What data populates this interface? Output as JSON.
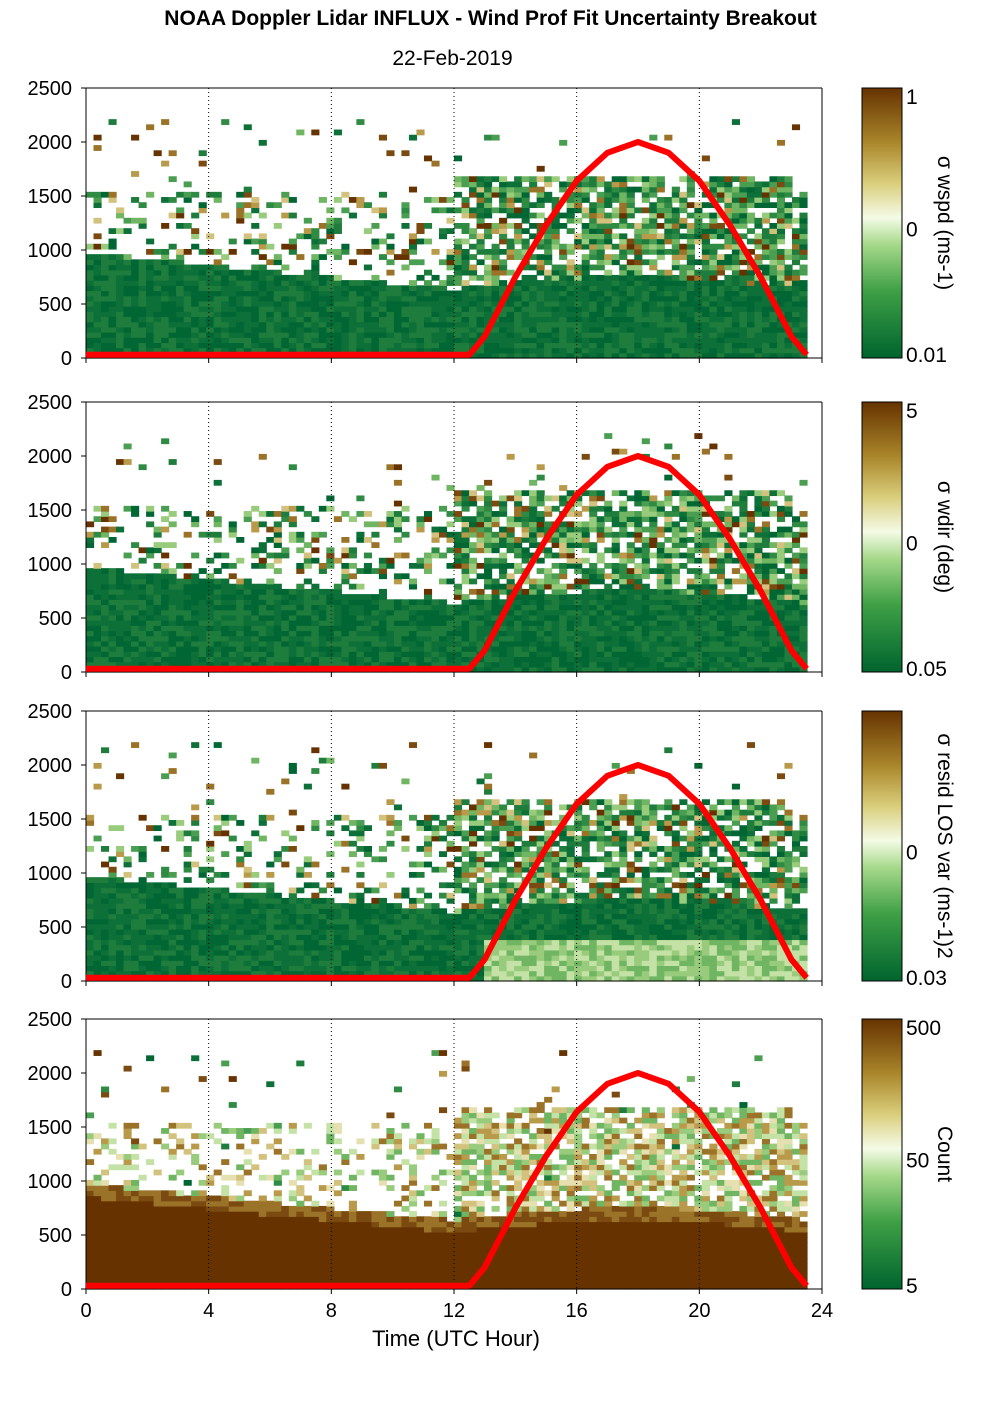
{
  "figure": {
    "title": "NOAA Doppler Lidar INFLUX - Wind Prof Fit Uncertainty Breakout",
    "date": "22-Feb-2019"
  },
  "chart_data": [
    {
      "type": "heatmap",
      "colorbar_label": "σ wspd (ms-1)",
      "colorbar_ticks": [
        "1",
        "0",
        "0.01"
      ],
      "ylim": [
        0,
        2500
      ],
      "xlim": [
        0,
        24
      ],
      "y_ticks": [
        "0",
        "500",
        "1000",
        "1500",
        "2000",
        "2500"
      ],
      "overlay_series": {
        "color": "#ff0000",
        "x": [
          0,
          12.5,
          13,
          14,
          15,
          16,
          17,
          18,
          19,
          20,
          21,
          22,
          23,
          23.5
        ],
        "y": [
          30,
          30,
          200,
          750,
          1230,
          1640,
          1900,
          2000,
          1900,
          1640,
          1230,
          750,
          200,
          30
        ]
      },
      "colors": [
        "#006633",
        "#ffffff",
        "#663300"
      ]
    },
    {
      "type": "heatmap",
      "colorbar_label": "σ wdir (deg)",
      "colorbar_ticks": [
        "5",
        "0",
        "0.05"
      ],
      "ylim": [
        0,
        2500
      ],
      "xlim": [
        0,
        24
      ],
      "y_ticks": [
        "0",
        "500",
        "1000",
        "1500",
        "2000",
        "2500"
      ],
      "overlay_series": {
        "color": "#ff0000",
        "x": [
          0,
          12.5,
          13,
          14,
          15,
          16,
          17,
          18,
          19,
          20,
          21,
          22,
          23,
          23.5
        ],
        "y": [
          30,
          30,
          200,
          750,
          1230,
          1640,
          1900,
          2000,
          1900,
          1640,
          1230,
          750,
          200,
          30
        ]
      }
    },
    {
      "type": "heatmap",
      "colorbar_label": "σ resid LOS var (ms-1)2",
      "colorbar_ticks": [
        "0",
        "0.03"
      ],
      "ylim": [
        0,
        2500
      ],
      "xlim": [
        0,
        24
      ],
      "y_ticks": [
        "0",
        "500",
        "1000",
        "1500",
        "2000",
        "2500"
      ],
      "overlay_series": {
        "color": "#ff0000",
        "x": [
          0,
          12.5,
          13,
          14,
          15,
          16,
          17,
          18,
          19,
          20,
          21,
          22,
          23,
          23.5
        ],
        "y": [
          30,
          30,
          200,
          750,
          1230,
          1640,
          1900,
          2000,
          1900,
          1640,
          1230,
          750,
          200,
          30
        ]
      }
    },
    {
      "type": "heatmap",
      "colorbar_label": "Count",
      "colorbar_ticks": [
        "500",
        "50",
        "5"
      ],
      "ylim": [
        0,
        2500
      ],
      "xlim": [
        0,
        24
      ],
      "y_ticks": [
        "0",
        "500",
        "1000",
        "1500",
        "2000",
        "2500"
      ],
      "x_ticks": [
        "0",
        "4",
        "8",
        "12",
        "16",
        "20",
        "24"
      ],
      "xlabel": "Time (UTC Hour)",
      "overlay_series": {
        "color": "#ff0000",
        "x": [
          0,
          12.5,
          13,
          14,
          15,
          16,
          17,
          18,
          19,
          20,
          21,
          22,
          23,
          23.5
        ],
        "y": [
          30,
          30,
          200,
          750,
          1230,
          1640,
          1900,
          2000,
          1900,
          1640,
          1230,
          750,
          200,
          30
        ]
      }
    }
  ]
}
